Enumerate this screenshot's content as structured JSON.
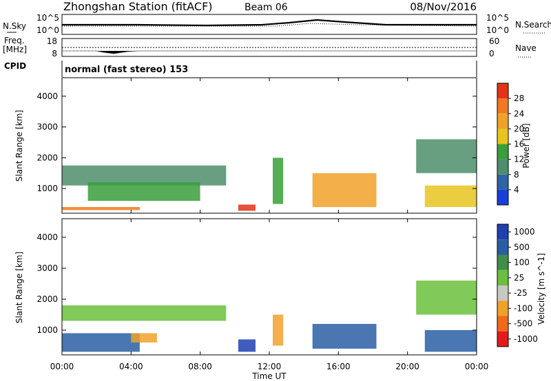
{
  "header": {
    "title": "Zhongshan Station (fitACF)",
    "beam": "Beam 06",
    "date": "08/Nov/2016"
  },
  "noise_panel": {
    "left_label": "N.Sky",
    "right_label": "N.Search",
    "left_ticks": [
      "10^5",
      "10^0"
    ],
    "right_ticks": [
      "10^5",
      "10^0"
    ]
  },
  "freq_panel": {
    "left_label_line1": "Freq.",
    "left_label_line2": "[MHz]",
    "right_label": "Nave",
    "left_ticks": [
      "18",
      "8"
    ],
    "right_ticks": [
      "60",
      "0"
    ]
  },
  "cpid": {
    "label": "CPID",
    "text": "normal (fast stereo) 153"
  },
  "x_axis": {
    "label": "Time UT",
    "ticks": [
      "00:00",
      "04:00",
      "08:00",
      "12:00",
      "16:00",
      "20:00",
      "00:00"
    ]
  },
  "colors": {
    "power_scale": [
      "#1a3fd9",
      "#2f62a8",
      "#4e8e6a",
      "#3a9e3a",
      "#e7c51f",
      "#f0a12a",
      "#ef7a22",
      "#e43317"
    ],
    "velocity_scale": [
      "#e21b1b",
      "#ef6a1a",
      "#f0a12a",
      "#c8c8c2",
      "#6bbf3c",
      "#3f8e4a",
      "#2a5ea3",
      "#1f3fb2"
    ]
  },
  "chart_data": [
    {
      "type": "heatmap",
      "title": "Power",
      "ylabel": "Slant Range [km]",
      "ylim": [
        200,
        4600
      ],
      "yticks": [
        "1000",
        "2000",
        "3000",
        "4000"
      ],
      "colorbar": {
        "label": "Power [dB]",
        "ticks": [
          "4",
          "8",
          "12",
          "16",
          "20",
          "24",
          "28"
        ],
        "range": [
          0,
          32
        ]
      },
      "echo_regions_ut_hours_km": [
        {
          "t": [
            0,
            4.5
          ],
          "r": [
            300,
            400
          ],
          "value_db": 26
        },
        {
          "t": [
            0,
            9.5
          ],
          "r": [
            1100,
            1750
          ],
          "value_db": 8
        },
        {
          "t": [
            1.5,
            8
          ],
          "r": [
            600,
            1200
          ],
          "value_db": 14
        },
        {
          "t": [
            10.2,
            11.2
          ],
          "r": [
            280,
            480
          ],
          "value_db": 28
        },
        {
          "t": [
            12.2,
            12.8
          ],
          "r": [
            500,
            2000
          ],
          "value_db": 12
        },
        {
          "t": [
            14.5,
            18.2
          ],
          "r": [
            400,
            1500
          ],
          "value_db": 22
        },
        {
          "t": [
            20.5,
            24
          ],
          "r": [
            1500,
            2600
          ],
          "value_db": 8
        },
        {
          "t": [
            21,
            24
          ],
          "r": [
            400,
            1100
          ],
          "value_db": 18
        }
      ]
    },
    {
      "type": "heatmap",
      "title": "Velocity",
      "ylabel": "Slant Range [km]",
      "ylim": [
        200,
        4600
      ],
      "yticks": [
        "1000",
        "2000",
        "3000",
        "4000"
      ],
      "colorbar": {
        "label": "Velocity [m s^-1]",
        "ticks": [
          "1000",
          "500",
          "100",
          "25",
          "-25",
          "-100",
          "-500",
          "-1000"
        ]
      },
      "echo_regions_ut_hours_km": [
        {
          "t": [
            0,
            9.5
          ],
          "r": [
            1300,
            1800
          ],
          "value_ms": 0
        },
        {
          "t": [
            0,
            4.5
          ],
          "r": [
            300,
            900
          ],
          "value_ms": 300
        },
        {
          "t": [
            4,
            5.5
          ],
          "r": [
            600,
            900
          ],
          "value_ms": -300
        },
        {
          "t": [
            10.2,
            11.2
          ],
          "r": [
            300,
            700
          ],
          "value_ms": 800
        },
        {
          "t": [
            12.2,
            12.8
          ],
          "r": [
            500,
            1500
          ],
          "value_ms": -400
        },
        {
          "t": [
            14.5,
            18.2
          ],
          "r": [
            400,
            1200
          ],
          "value_ms": 200
        },
        {
          "t": [
            20.5,
            24
          ],
          "r": [
            1500,
            2600
          ],
          "value_ms": 0
        },
        {
          "t": [
            21,
            24
          ],
          "r": [
            300,
            1000
          ],
          "value_ms": 300
        }
      ]
    }
  ]
}
